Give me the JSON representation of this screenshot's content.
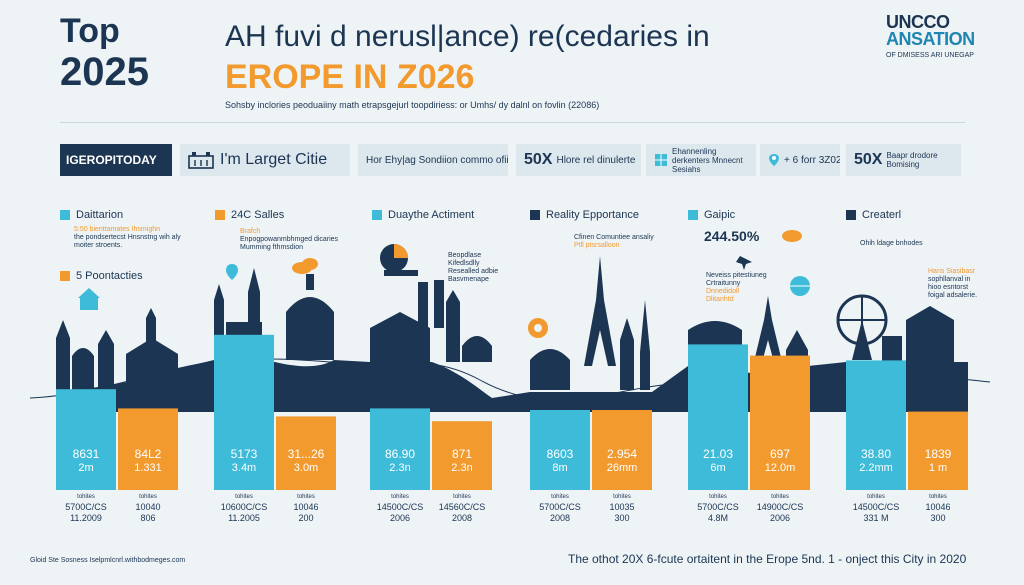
{
  "header": {
    "top_label": "Top",
    "top_year": "2025",
    "title_line1": "AH fuvi d nerusl|ance) re(cedaries in",
    "title_line2": "EROPE IN Z026",
    "subtitle": "Sohsby inclories peoduaiiny math etrapsgejurl toopdiriess: or Umhs/ dy dalnl on fovlin (22086)",
    "logo_line1": "UNCCO",
    "logo_line2": "ANSATION",
    "logo_sub": "OF DMISESS ARI UNEGAP"
  },
  "strips": {
    "brand": "IGEROPITODAY",
    "target": "I'm Larget Citie",
    "note1": "Hor Ehy|ag Sondiion commo ofiiate",
    "big1": "50X",
    "note2": "Hlore rel dinulerte",
    "note3": "Ehannenling derkenters Mnnecnt Sesiahs",
    "note4": "+ 6 forr 3Z02s",
    "big2": "50X",
    "note5": "Baapr drodore Bomising"
  },
  "categories": [
    {
      "label": "Daittarion",
      "notes": [
        "5:50 bienttamates Ihsmighn",
        "the pondsertecst Hnsnstng wih aly",
        "moiter stroents."
      ],
      "extra": "5 Poontacties"
    },
    {
      "label": "24C Salles",
      "notes": [
        "Brafch",
        "Enpogpowanmbhmged dicaries",
        "Mumming fthmsdion"
      ]
    },
    {
      "label": "Duaythe Actiment",
      "notes": [
        "Beopdlase",
        "Kifedlsdlly",
        "Resealled adbie",
        "Basvmenape"
      ]
    },
    {
      "label": "Reality Epportance",
      "notes": [
        "Cfinen Comuntiee ansaliy",
        "Ptll ptsrsalloon"
      ]
    },
    {
      "label": "Gaipic",
      "percent": "244.50%",
      "notes": [
        "Neveiss pitestiuneg",
        "Crtraitunny",
        "Dnnedidoll",
        "Dlitanhtd"
      ]
    },
    {
      "label": "Createrl",
      "notes": [
        "Ohih ldage bnhodes"
      ],
      "side_notes": [
        "Hans Siasibasr",
        "sophllanval in",
        "hioo esntorst",
        "foigal adsalerie."
      ]
    }
  ],
  "chart_data": {
    "type": "bar",
    "title": "",
    "xlabel": "",
    "ylabel": "",
    "ylim": [
      0,
      10
    ],
    "series": [
      {
        "color": "#3ebbd8",
        "values": [
          6.3,
          9.7,
          5.1,
          5.0,
          9.1,
          8.1
        ],
        "labels": [
          [
            "8631",
            "2m"
          ],
          [
            "5173",
            "3.4m"
          ],
          [
            "86.90",
            "2.3n"
          ],
          [
            "8603",
            "8m"
          ],
          [
            "21.03",
            "6m"
          ],
          [
            "38.80",
            "2.2mm"
          ]
        ]
      },
      {
        "color": "#f29a2e",
        "values": [
          5.1,
          4.6,
          4.3,
          5.0,
          8.4,
          4.9
        ],
        "labels": [
          [
            "84L2",
            "1.331"
          ],
          [
            "31...26",
            "3.0m"
          ],
          [
            "871",
            "2.3n"
          ],
          [
            "2.954",
            "26mm"
          ],
          [
            "697",
            "12.0m"
          ],
          [
            "1839",
            "1 m"
          ]
        ]
      }
    ],
    "baseline_labels": [
      [
        "5700C/CS",
        "11.2009"
      ],
      [
        "10040",
        "806"
      ],
      [
        "10600C/CS",
        "11.2005"
      ],
      [
        "10046",
        "200"
      ],
      [
        "14500C/CS",
        "2006"
      ],
      [
        "14560C/CS",
        "2008"
      ],
      [
        "5700C/CS",
        "2008"
      ],
      [
        "10035",
        "300"
      ],
      [
        "5700C/CS",
        "4.8M"
      ],
      [
        "14900C/CS",
        "2006"
      ],
      [
        "14500C/CS",
        "331 M"
      ],
      [
        "10046",
        "300"
      ]
    ]
  },
  "footer": {
    "left": "Gloid Ste Sosness Iselpmlcnrl.withbodmeges.com",
    "right": "The othot 20X 6-fcute ortaitent in the Erope 5nd. 1 - onject this City in 2020"
  },
  "colors": {
    "navy": "#1b3552",
    "cyan": "#3ebbd8",
    "orange": "#f29a2e",
    "bg": "#eef3f6"
  }
}
